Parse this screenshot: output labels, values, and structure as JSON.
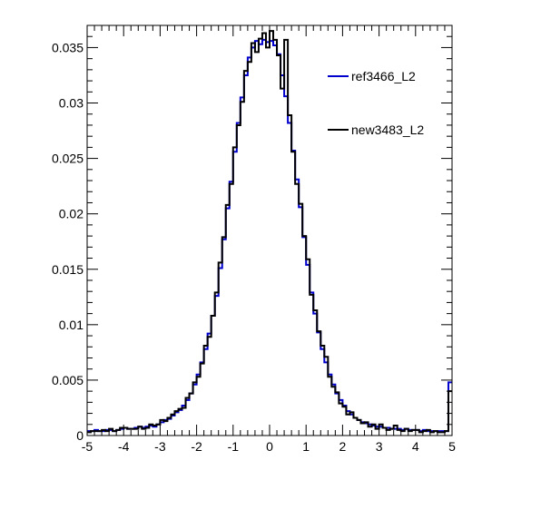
{
  "chart_data": {
    "type": "line",
    "title": "",
    "xlabel": "",
    "ylabel": "",
    "xlim": [
      -5,
      5
    ],
    "ylim": [
      0,
      0.037
    ],
    "x_ticks": [
      "-5",
      "-4",
      "-3",
      "-2",
      "-1",
      "0",
      "1",
      "2",
      "3",
      "4",
      "5"
    ],
    "y_ticks": [
      "0",
      "0.005",
      "0.01",
      "0.015",
      "0.02",
      "0.025",
      "0.03",
      "0.035"
    ],
    "bin_width": 0.1,
    "legend_position": "top-right",
    "grid": false,
    "series": [
      {
        "name": "ref3466_L2",
        "color": "#0000cc",
        "values": [
          0.0004,
          0.0004,
          0.0005,
          0.0004,
          0.0004,
          0.0005,
          0.0005,
          0.0004,
          0.0005,
          0.0006,
          0.0007,
          0.0006,
          0.0006,
          0.0007,
          0.0008,
          0.0007,
          0.0008,
          0.0009,
          0.0008,
          0.001,
          0.0012,
          0.0014,
          0.0015,
          0.0018,
          0.0021,
          0.0023,
          0.0027,
          0.0032,
          0.0038,
          0.0046,
          0.0055,
          0.0066,
          0.0078,
          0.0092,
          0.0108,
          0.0126,
          0.0151,
          0.0177,
          0.0205,
          0.0229,
          0.0256,
          0.0282,
          0.0305,
          0.0325,
          0.0341,
          0.035,
          0.0356,
          0.0353,
          0.0357,
          0.0355,
          0.0356,
          0.0352,
          0.0344,
          0.0325,
          0.0306,
          0.0282,
          0.0257,
          0.0231,
          0.0206,
          0.0179,
          0.0154,
          0.0129,
          0.011,
          0.0093,
          0.0078,
          0.0066,
          0.0055,
          0.0046,
          0.0038,
          0.0032,
          0.0027,
          0.0022,
          0.0019,
          0.0016,
          0.0014,
          0.0012,
          0.0011,
          0.001,
          0.0009,
          0.0008,
          0.0008,
          0.0007,
          0.0007,
          0.0006,
          0.0006,
          0.0006,
          0.0005,
          0.0006,
          0.0005,
          0.0005,
          0.0005,
          0.0004,
          0.0005,
          0.0004,
          0.0004,
          0.0004,
          0.0004,
          0.0004,
          0.0004,
          0.0048
        ]
      },
      {
        "name": "new3483_L2",
        "color": "#000000",
        "values": [
          0.0003,
          0.0004,
          0.0004,
          0.0004,
          0.0005,
          0.0004,
          0.0006,
          0.0004,
          0.0005,
          0.0007,
          0.0007,
          0.0006,
          0.0006,
          0.0006,
          0.0008,
          0.0006,
          0.0007,
          0.001,
          0.0009,
          0.001,
          0.0014,
          0.0013,
          0.0016,
          0.0019,
          0.0022,
          0.0024,
          0.0025,
          0.0034,
          0.0038,
          0.0048,
          0.0053,
          0.0065,
          0.0081,
          0.0089,
          0.0108,
          0.0129,
          0.0156,
          0.0179,
          0.0208,
          0.0227,
          0.026,
          0.028,
          0.0301,
          0.0329,
          0.0337,
          0.0354,
          0.0346,
          0.0358,
          0.0363,
          0.035,
          0.0365,
          0.0357,
          0.0343,
          0.0313,
          0.0357,
          0.0289,
          0.0256,
          0.0227,
          0.0209,
          0.018,
          0.0159,
          0.0127,
          0.0113,
          0.0094,
          0.0081,
          0.0071,
          0.0053,
          0.0044,
          0.0039,
          0.0029,
          0.0026,
          0.0019,
          0.0021,
          0.0016,
          0.0014,
          0.0011,
          0.0012,
          0.0008,
          0.001,
          0.0006,
          0.001,
          0.0007,
          0.0005,
          0.0006,
          0.0009,
          0.0005,
          0.0004,
          0.0006,
          0.0004,
          0.0005,
          0.0005,
          0.0003,
          0.0004,
          0.0005,
          0.0003,
          0.0004,
          0.0003,
          0.0003,
          0.0004,
          0.004
        ]
      }
    ]
  }
}
